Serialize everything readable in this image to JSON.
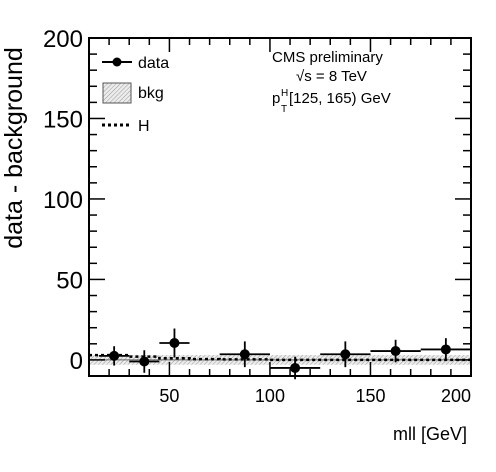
{
  "chart_data": {
    "type": "scatter",
    "xlabel": "mll [GeV]",
    "ylabel": "data - background",
    "xlim": [
      10,
      200
    ],
    "ylim": [
      -10,
      200
    ],
    "x_ticks": [
      50,
      100,
      150,
      200
    ],
    "y_ticks": [
      0,
      50,
      100,
      150,
      200
    ],
    "x_minor_step": 10,
    "y_minor_step": 10,
    "grid": false,
    "legend_position": "top-left",
    "legend": [
      {
        "label": "data",
        "style": "marker-errorbar"
      },
      {
        "label": "bkg",
        "style": "hatched-box"
      },
      {
        "label": "H",
        "style": "dotted-line"
      }
    ],
    "annotation": {
      "line1": "CMS preliminary",
      "sqrt_s_prefix": "√s",
      "sqrt_s_rest": " = 8 TeV",
      "pt_symbol": "p",
      "pt_sub": "T",
      "pt_sup": "H",
      "pt_range": " [125, 165) GeV"
    },
    "series": [
      {
        "name": "data",
        "points": [
          {
            "x": 22.5,
            "y": 2.5,
            "xerr": 7.5,
            "yerr": 6
          },
          {
            "x": 37.5,
            "y": -1,
            "xerr": 7.5,
            "yerr": 7
          },
          {
            "x": 52.5,
            "y": 10.5,
            "xerr": 7.5,
            "yerr": 9
          },
          {
            "x": 87.5,
            "y": 3.5,
            "xerr": 12.5,
            "yerr": 8
          },
          {
            "x": 112.5,
            "y": -5,
            "xerr": 12.5,
            "yerr": 7
          },
          {
            "x": 137.5,
            "y": 3.5,
            "xerr": 12.5,
            "yerr": 8
          },
          {
            "x": 162.5,
            "y": 5.5,
            "xerr": 12.5,
            "yerr": 7
          },
          {
            "x": 187.5,
            "y": 6.5,
            "xerr": 12.5,
            "yerr": 7
          }
        ]
      },
      {
        "name": "bkg",
        "band": {
          "x0": 10,
          "x1": 200,
          "ylow": -3,
          "yhigh": 3
        }
      },
      {
        "name": "H",
        "steps": [
          {
            "x0": 10,
            "x1": 15,
            "y": 3
          },
          {
            "x0": 15,
            "x1": 30,
            "y": 3
          },
          {
            "x0": 30,
            "x1": 45,
            "y": 2
          },
          {
            "x0": 45,
            "x1": 60,
            "y": 1
          },
          {
            "x0": 60,
            "x1": 75,
            "y": 0.5
          },
          {
            "x0": 75,
            "x1": 100,
            "y": 0.3
          },
          {
            "x0": 100,
            "x1": 200,
            "y": 0
          }
        ]
      }
    ]
  }
}
